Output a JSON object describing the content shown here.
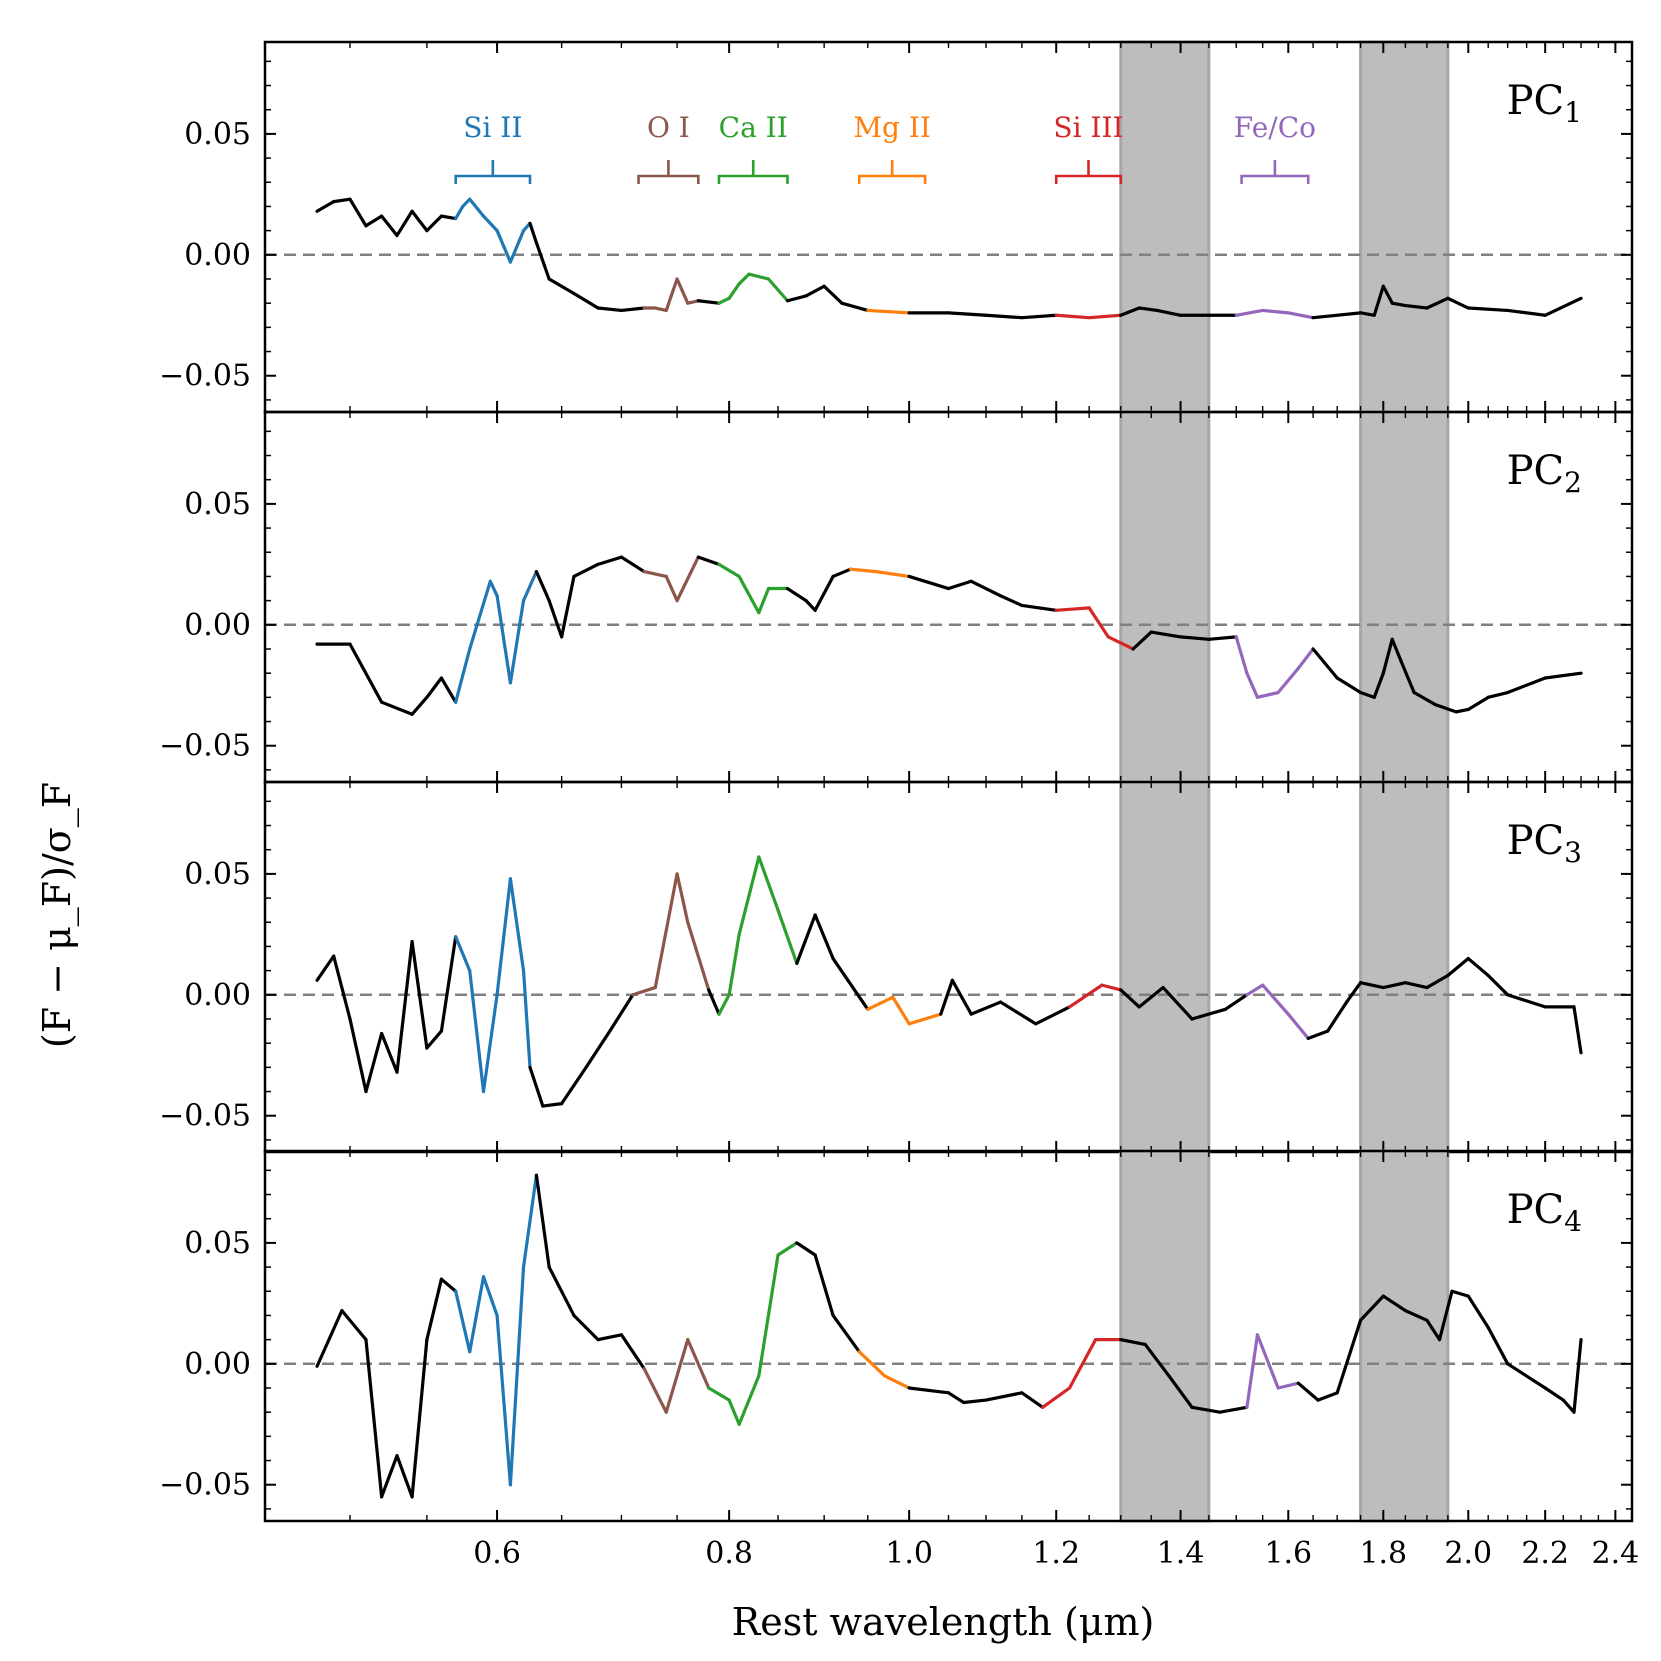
{
  "chart_data": {
    "type": "line",
    "xlabel": "Rest wavelength (μm)",
    "ylabel": "(F − μ_F)/σ_F",
    "x_scale": "log",
    "xlim": [
      0.45,
      2.45
    ],
    "ylim": [
      -0.065,
      0.088
    ],
    "x_ticks": [
      {
        "value": 0.6,
        "label": "0.6"
      },
      {
        "value": 0.8,
        "label": "0.8"
      },
      {
        "value": 1.0,
        "label": "1.0"
      },
      {
        "value": 1.2,
        "label": "1.2"
      },
      {
        "value": 1.4,
        "label": "1.4"
      },
      {
        "value": 1.6,
        "label": "1.6"
      },
      {
        "value": 1.8,
        "label": "1.8"
      },
      {
        "value": 2.0,
        "label": "2.0"
      },
      {
        "value": 2.2,
        "label": "2.2"
      },
      {
        "value": 2.4,
        "label": "2.4"
      }
    ],
    "y_ticks": [
      {
        "value": 0.05,
        "label": "0.05"
      },
      {
        "value": 0.0,
        "label": "0.00"
      },
      {
        "value": -0.05,
        "label": "−0.05"
      }
    ],
    "reference_line": {
      "y": 0.0,
      "style": "dashed",
      "color": "#808080"
    },
    "telluric_bands": [
      [
        1.3,
        1.45
      ],
      [
        1.75,
        1.95
      ]
    ],
    "features": [
      {
        "name": "Si II",
        "color": "#1f77b4",
        "range": [
          0.57,
          0.625
        ]
      },
      {
        "name": "O I",
        "color": "#8c564b",
        "range": [
          0.715,
          0.77
        ]
      },
      {
        "name": "Ca II",
        "color": "#2ca02c",
        "range": [
          0.79,
          0.86
        ]
      },
      {
        "name": "Mg II",
        "color": "#ff7f0e",
        "range": [
          0.94,
          1.02
        ]
      },
      {
        "name": "Si III",
        "color": "#d62728",
        "range": [
          1.2,
          1.3
        ]
      },
      {
        "name": "Fe/Co",
        "color": "#9467bd",
        "range": [
          1.51,
          1.64
        ]
      }
    ],
    "panels": [
      {
        "label_main": "PC",
        "label_sub": "1",
        "points": [
          [
            0.48,
            0.018
          ],
          [
            0.49,
            0.022
          ],
          [
            0.5,
            0.023
          ],
          [
            0.51,
            0.012
          ],
          [
            0.52,
            0.016
          ],
          [
            0.53,
            0.008
          ],
          [
            0.54,
            0.018
          ],
          [
            0.55,
            0.01
          ],
          [
            0.56,
            0.016
          ],
          [
            0.57,
            0.015
          ],
          [
            0.575,
            0.02
          ],
          [
            0.58,
            0.023
          ],
          [
            0.59,
            0.016
          ],
          [
            0.6,
            0.01
          ],
          [
            0.61,
            -0.003
          ],
          [
            0.62,
            0.01
          ],
          [
            0.625,
            0.013
          ],
          [
            0.63,
            0.005
          ],
          [
            0.64,
            -0.01
          ],
          [
            0.66,
            -0.016
          ],
          [
            0.68,
            -0.022
          ],
          [
            0.7,
            -0.023
          ],
          [
            0.72,
            -0.022
          ],
          [
            0.73,
            -0.022
          ],
          [
            0.74,
            -0.023
          ],
          [
            0.75,
            -0.01
          ],
          [
            0.76,
            -0.02
          ],
          [
            0.77,
            -0.019
          ],
          [
            0.79,
            -0.02
          ],
          [
            0.8,
            -0.018
          ],
          [
            0.81,
            -0.012
          ],
          [
            0.82,
            -0.008
          ],
          [
            0.84,
            -0.01
          ],
          [
            0.86,
            -0.019
          ],
          [
            0.88,
            -0.017
          ],
          [
            0.9,
            -0.013
          ],
          [
            0.92,
            -0.02
          ],
          [
            0.95,
            -0.023
          ],
          [
            1.0,
            -0.024
          ],
          [
            1.05,
            -0.024
          ],
          [
            1.1,
            -0.025
          ],
          [
            1.15,
            -0.026
          ],
          [
            1.2,
            -0.025
          ],
          [
            1.25,
            -0.026
          ],
          [
            1.3,
            -0.025
          ],
          [
            1.33,
            -0.022
          ],
          [
            1.36,
            -0.023
          ],
          [
            1.4,
            -0.025
          ],
          [
            1.5,
            -0.025
          ],
          [
            1.55,
            -0.023
          ],
          [
            1.6,
            -0.024
          ],
          [
            1.65,
            -0.026
          ],
          [
            1.75,
            -0.024
          ],
          [
            1.78,
            -0.025
          ],
          [
            1.8,
            -0.013
          ],
          [
            1.82,
            -0.02
          ],
          [
            1.85,
            -0.021
          ],
          [
            1.9,
            -0.022
          ],
          [
            1.95,
            -0.018
          ],
          [
            2.0,
            -0.022
          ],
          [
            2.1,
            -0.023
          ],
          [
            2.2,
            -0.025
          ],
          [
            2.3,
            -0.018
          ]
        ]
      },
      {
        "label_main": "PC",
        "label_sub": "2",
        "points": [
          [
            0.48,
            -0.008
          ],
          [
            0.5,
            -0.008
          ],
          [
            0.52,
            -0.032
          ],
          [
            0.54,
            -0.037
          ],
          [
            0.55,
            -0.03
          ],
          [
            0.56,
            -0.022
          ],
          [
            0.57,
            -0.032
          ],
          [
            0.58,
            -0.01
          ],
          [
            0.595,
            0.018
          ],
          [
            0.6,
            0.012
          ],
          [
            0.61,
            -0.024
          ],
          [
            0.62,
            0.01
          ],
          [
            0.63,
            0.022
          ],
          [
            0.64,
            0.01
          ],
          [
            0.65,
            -0.005
          ],
          [
            0.66,
            0.02
          ],
          [
            0.68,
            0.025
          ],
          [
            0.7,
            0.028
          ],
          [
            0.72,
            0.022
          ],
          [
            0.74,
            0.02
          ],
          [
            0.75,
            0.01
          ],
          [
            0.77,
            0.028
          ],
          [
            0.79,
            0.025
          ],
          [
            0.81,
            0.02
          ],
          [
            0.83,
            0.005
          ],
          [
            0.84,
            0.015
          ],
          [
            0.86,
            0.015
          ],
          [
            0.88,
            0.01
          ],
          [
            0.89,
            0.006
          ],
          [
            0.91,
            0.02
          ],
          [
            0.93,
            0.023
          ],
          [
            0.96,
            0.022
          ],
          [
            1.0,
            0.02
          ],
          [
            1.05,
            0.015
          ],
          [
            1.08,
            0.018
          ],
          [
            1.12,
            0.012
          ],
          [
            1.15,
            0.008
          ],
          [
            1.2,
            0.006
          ],
          [
            1.25,
            0.007
          ],
          [
            1.28,
            -0.005
          ],
          [
            1.32,
            -0.01
          ],
          [
            1.35,
            -0.003
          ],
          [
            1.4,
            -0.005
          ],
          [
            1.45,
            -0.006
          ],
          [
            1.5,
            -0.005
          ],
          [
            1.52,
            -0.02
          ],
          [
            1.54,
            -0.03
          ],
          [
            1.58,
            -0.028
          ],
          [
            1.62,
            -0.018
          ],
          [
            1.65,
            -0.01
          ],
          [
            1.7,
            -0.022
          ],
          [
            1.75,
            -0.028
          ],
          [
            1.78,
            -0.03
          ],
          [
            1.8,
            -0.02
          ],
          [
            1.82,
            -0.006
          ],
          [
            1.84,
            -0.015
          ],
          [
            1.87,
            -0.028
          ],
          [
            1.92,
            -0.033
          ],
          [
            1.97,
            -0.036
          ],
          [
            2.0,
            -0.035
          ],
          [
            2.05,
            -0.03
          ],
          [
            2.1,
            -0.028
          ],
          [
            2.2,
            -0.022
          ],
          [
            2.3,
            -0.02
          ]
        ]
      },
      {
        "label_main": "PC",
        "label_sub": "3",
        "points": [
          [
            0.48,
            0.006
          ],
          [
            0.49,
            0.016
          ],
          [
            0.5,
            -0.01
          ],
          [
            0.51,
            -0.04
          ],
          [
            0.52,
            -0.016
          ],
          [
            0.53,
            -0.032
          ],
          [
            0.54,
            0.022
          ],
          [
            0.55,
            -0.022
          ],
          [
            0.56,
            -0.015
          ],
          [
            0.57,
            0.024
          ],
          [
            0.58,
            0.01
          ],
          [
            0.59,
            -0.04
          ],
          [
            0.6,
            0.0
          ],
          [
            0.61,
            0.048
          ],
          [
            0.62,
            0.01
          ],
          [
            0.625,
            -0.03
          ],
          [
            0.635,
            -0.046
          ],
          [
            0.65,
            -0.045
          ],
          [
            0.67,
            -0.03
          ],
          [
            0.69,
            -0.015
          ],
          [
            0.71,
            0.0
          ],
          [
            0.73,
            0.003
          ],
          [
            0.75,
            0.05
          ],
          [
            0.76,
            0.03
          ],
          [
            0.78,
            0.002
          ],
          [
            0.79,
            -0.008
          ],
          [
            0.8,
            0.0
          ],
          [
            0.81,
            0.025
          ],
          [
            0.83,
            0.057
          ],
          [
            0.85,
            0.035
          ],
          [
            0.87,
            0.013
          ],
          [
            0.89,
            0.033
          ],
          [
            0.91,
            0.015
          ],
          [
            0.95,
            -0.006
          ],
          [
            0.98,
            -0.001
          ],
          [
            1.0,
            -0.012
          ],
          [
            1.04,
            -0.008
          ],
          [
            1.055,
            0.006
          ],
          [
            1.08,
            -0.008
          ],
          [
            1.12,
            -0.003
          ],
          [
            1.17,
            -0.012
          ],
          [
            1.22,
            -0.005
          ],
          [
            1.27,
            0.004
          ],
          [
            1.3,
            0.002
          ],
          [
            1.33,
            -0.005
          ],
          [
            1.37,
            0.003
          ],
          [
            1.42,
            -0.01
          ],
          [
            1.48,
            -0.006
          ],
          [
            1.52,
            0.0
          ],
          [
            1.55,
            0.004
          ],
          [
            1.6,
            -0.008
          ],
          [
            1.64,
            -0.018
          ],
          [
            1.68,
            -0.015
          ],
          [
            1.72,
            -0.003
          ],
          [
            1.75,
            0.005
          ],
          [
            1.8,
            0.003
          ],
          [
            1.85,
            0.005
          ],
          [
            1.9,
            0.003
          ],
          [
            1.95,
            0.008
          ],
          [
            2.0,
            0.015
          ],
          [
            2.05,
            0.008
          ],
          [
            2.1,
            0.0
          ],
          [
            2.2,
            -0.005
          ],
          [
            2.28,
            -0.005
          ],
          [
            2.3,
            -0.024
          ]
        ]
      },
      {
        "label_main": "PC",
        "label_sub": "4",
        "points": [
          [
            0.48,
            -0.001
          ],
          [
            0.495,
            0.022
          ],
          [
            0.51,
            0.01
          ],
          [
            0.52,
            -0.055
          ],
          [
            0.53,
            -0.038
          ],
          [
            0.54,
            -0.055
          ],
          [
            0.55,
            0.01
          ],
          [
            0.56,
            0.035
          ],
          [
            0.57,
            0.03
          ],
          [
            0.58,
            0.005
          ],
          [
            0.59,
            0.036
          ],
          [
            0.6,
            0.02
          ],
          [
            0.61,
            -0.05
          ],
          [
            0.62,
            0.04
          ],
          [
            0.63,
            0.078
          ],
          [
            0.64,
            0.04
          ],
          [
            0.66,
            0.02
          ],
          [
            0.68,
            0.01
          ],
          [
            0.7,
            0.012
          ],
          [
            0.72,
            -0.002
          ],
          [
            0.74,
            -0.02
          ],
          [
            0.76,
            0.01
          ],
          [
            0.78,
            -0.01
          ],
          [
            0.8,
            -0.015
          ],
          [
            0.81,
            -0.025
          ],
          [
            0.83,
            -0.005
          ],
          [
            0.85,
            0.045
          ],
          [
            0.87,
            0.05
          ],
          [
            0.89,
            0.045
          ],
          [
            0.91,
            0.02
          ],
          [
            0.94,
            0.005
          ],
          [
            0.97,
            -0.005
          ],
          [
            1.0,
            -0.01
          ],
          [
            1.05,
            -0.012
          ],
          [
            1.07,
            -0.016
          ],
          [
            1.1,
            -0.015
          ],
          [
            1.15,
            -0.012
          ],
          [
            1.18,
            -0.018
          ],
          [
            1.22,
            -0.01
          ],
          [
            1.26,
            0.01
          ],
          [
            1.3,
            0.01
          ],
          [
            1.34,
            0.008
          ],
          [
            1.38,
            -0.005
          ],
          [
            1.42,
            -0.018
          ],
          [
            1.47,
            -0.02
          ],
          [
            1.52,
            -0.018
          ],
          [
            1.54,
            0.012
          ],
          [
            1.58,
            -0.01
          ],
          [
            1.62,
            -0.008
          ],
          [
            1.66,
            -0.015
          ],
          [
            1.7,
            -0.012
          ],
          [
            1.75,
            0.018
          ],
          [
            1.8,
            0.028
          ],
          [
            1.85,
            0.022
          ],
          [
            1.9,
            0.018
          ],
          [
            1.93,
            0.01
          ],
          [
            1.96,
            0.03
          ],
          [
            2.0,
            0.028
          ],
          [
            2.05,
            0.015
          ],
          [
            2.1,
            0.0
          ],
          [
            2.2,
            -0.01
          ],
          [
            2.25,
            -0.015
          ],
          [
            2.28,
            -0.02
          ],
          [
            2.3,
            0.01
          ]
        ]
      }
    ]
  }
}
